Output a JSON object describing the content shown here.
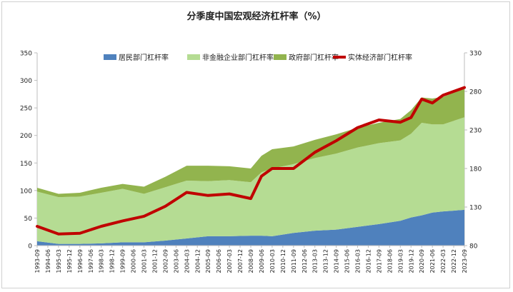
{
  "chart_data": {
    "type": "area",
    "title": "分季度中国宏观经济杠杆率（%）",
    "legend": [
      {
        "name": "居民部门杠杆率",
        "kind": "area",
        "color": "#4F81BD"
      },
      {
        "name": "非金融企业部门杠杆率",
        "kind": "area",
        "color": "#B5DC93"
      },
      {
        "name": "政府部门杠杆率",
        "kind": "area",
        "color": "#92B44E"
      },
      {
        "name": "实体经济部门杠杆率",
        "kind": "line",
        "color": "#C00000"
      }
    ],
    "legend_position": "top",
    "y_left": {
      "min": 0,
      "max": 350,
      "ticks": [
        "0",
        "50",
        "100",
        "150",
        "200",
        "250",
        "300",
        "350"
      ]
    },
    "y_right": {
      "min": 80,
      "max": 330,
      "ticks": [
        "80",
        "130",
        "180",
        "230",
        "280",
        "330"
      ]
    },
    "x_tick_labels": [
      "1993-09",
      "1994-06",
      "1995-03",
      "1995-12",
      "1996-09",
      "1997-06",
      "1998-03",
      "1998-12",
      "1999-09",
      "2000-06",
      "2001-03",
      "2001-12",
      "2002-09",
      "2003-06",
      "2004-03",
      "2004-12",
      "2005-09",
      "2006-06",
      "2007-03",
      "2007-12",
      "2008-09",
      "2009-06",
      "2010-03",
      "2010-12",
      "2011-09",
      "2012-06",
      "2013-03",
      "2013-12",
      "2014-09",
      "2015-06",
      "2016-03",
      "2016-12",
      "2017-09",
      "2018-06",
      "2019-03",
      "2019-12",
      "2020-09",
      "2021-06",
      "2022-03",
      "2022-12",
      "2023-09"
    ],
    "x_key_dates": [
      "1993-09",
      "1995-03",
      "1996-09",
      "1998-03",
      "1999-09",
      "2001-03",
      "2002-09",
      "2004-03",
      "2005-09",
      "2007-03",
      "2008-09",
      "2009-06",
      "2010-03",
      "2011-09",
      "2013-03",
      "2014-09",
      "2016-03",
      "2017-09",
      "2019-03",
      "2019-12",
      "2020-09",
      "2021-06",
      "2022-03",
      "2023-09"
    ],
    "series": [
      {
        "name": "居民部门杠杆率",
        "values": [
          8,
          3,
          3,
          4,
          6,
          6,
          9,
          13,
          17,
          17,
          18,
          18,
          17,
          23,
          27,
          29,
          34,
          39,
          45,
          51,
          55,
          60,
          62,
          65
        ]
      },
      {
        "name": "非金融企业部门杠杆率",
        "values": [
          90,
          85,
          86,
          92,
          97,
          88,
          97,
          105,
          100,
          102,
          97,
          115,
          123,
          125,
          132,
          138,
          144,
          147,
          146,
          152,
          168,
          160,
          158,
          168
        ]
      },
      {
        "name": "政府部门杠杆率",
        "values": [
          7,
          6,
          7,
          9,
          9,
          13,
          19,
          27,
          28,
          25,
          25,
          30,
          35,
          32,
          33,
          35,
          36,
          37,
          39,
          43,
          46,
          47,
          50,
          52
        ]
      },
      {
        "name": "实体经济部门杠杆率",
        "values": [
          105,
          95,
          96,
          105,
          112,
          118,
          131,
          149,
          145,
          147,
          141,
          170,
          180,
          180,
          201,
          216,
          233,
          243,
          240,
          246,
          270,
          265,
          275,
          285
        ]
      }
    ]
  }
}
